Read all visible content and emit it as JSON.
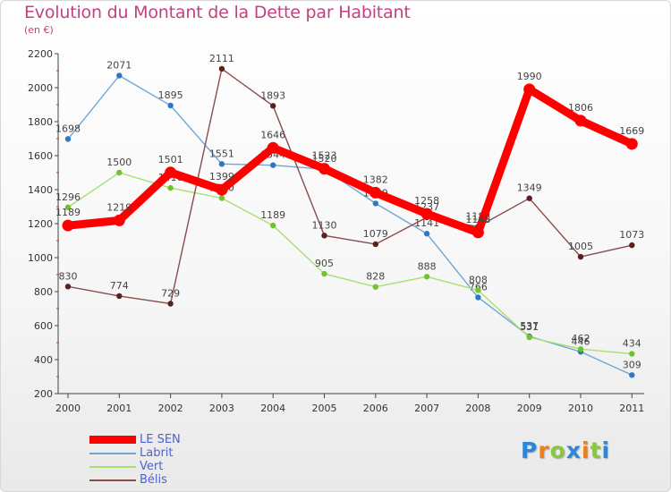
{
  "header": {
    "title": "Evolution du Montant de la Dette par Habitant",
    "subtitle": "(en €)"
  },
  "chart_data": {
    "type": "line",
    "title": "Evolution du Montant de la Dette par Habitant",
    "subtitle": "(en €)",
    "xlabel": "",
    "ylabel": "",
    "categories": [
      "2000",
      "2001",
      "2002",
      "2003",
      "2004",
      "2005",
      "2006",
      "2007",
      "2008",
      "2009",
      "2010",
      "2011"
    ],
    "y_ticks": [
      "200",
      "400",
      "600",
      "800",
      "1000",
      "1200",
      "1400",
      "1600",
      "1800",
      "2000",
      "2200"
    ],
    "ylim": [
      200,
      2200
    ],
    "grid": false,
    "legend_position": "bottom-left",
    "series": [
      {
        "name": "Labrit",
        "color": "#6fa7d2",
        "marker": "#2f78c0",
        "emphasis": false,
        "values": [
          1698,
          2071,
          1895,
          1551,
          1544,
          1520,
          1319,
          1141,
          766,
          537,
          446,
          309
        ]
      },
      {
        "name": "Vert",
        "color": "#a7e06f",
        "marker": "#72c12f",
        "emphasis": false,
        "values": [
          1296,
          1500,
          1410,
          1350,
          1189,
          905,
          828,
          888,
          808,
          531,
          462,
          434
        ]
      },
      {
        "name": "Bélis",
        "color": "#8a4b4b",
        "marker": "#5a1f1f",
        "emphasis": false,
        "values": [
          830,
          774,
          729,
          2111,
          1893,
          1130,
          1079,
          1237,
          1182,
          1349,
          1005,
          1073
        ]
      },
      {
        "name": "LE SEN",
        "color": "#ff0000",
        "marker": "#ff0000",
        "emphasis": true,
        "values": [
          1189,
          1219,
          1501,
          1399,
          1646,
          1523,
          1382,
          1258,
          1148,
          1990,
          1806,
          1669
        ]
      }
    ]
  },
  "legend": {
    "items": [
      {
        "label": "LE SEN",
        "color": "#ff0000",
        "thick": true
      },
      {
        "label": "Labrit",
        "color": "#6fa7d2",
        "thick": false
      },
      {
        "label": "Vert",
        "color": "#a7e06f",
        "thick": false
      },
      {
        "label": "Bélis",
        "color": "#8a4b4b",
        "thick": false
      }
    ]
  },
  "brand": {
    "letters": [
      {
        "char": "P",
        "color": "#2e86d6"
      },
      {
        "char": "r",
        "color": "#f07d1a"
      },
      {
        "char": "o",
        "color": "#8cc63f"
      },
      {
        "char": "x",
        "color": "#2e86d6"
      },
      {
        "char": "i",
        "color": "#f07d1a"
      },
      {
        "char": "t",
        "color": "#8cc63f"
      },
      {
        "char": "i",
        "color": "#2e86d6"
      }
    ]
  }
}
